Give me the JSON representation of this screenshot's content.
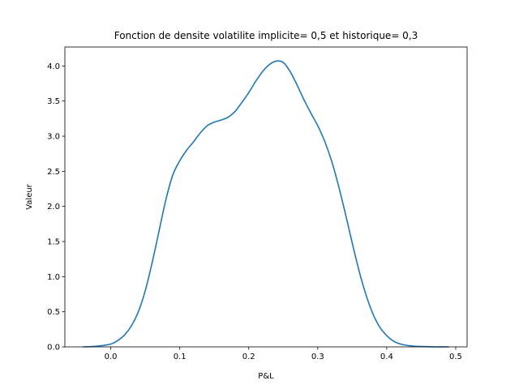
{
  "chart_data": {
    "type": "line",
    "title": "Fonction de densite volatilite implicite= 0,5 et historique= 0,3",
    "xlabel": "P&L",
    "ylabel": "Valeur",
    "xlim": [
      -0.0665,
      0.5165
    ],
    "ylim": [
      0.0,
      4.27
    ],
    "x_ticks": [
      0.0,
      0.1,
      0.2,
      0.3,
      0.4,
      0.5
    ],
    "x_tick_labels": [
      "0.0",
      "0.1",
      "0.2",
      "0.3",
      "0.4",
      "0.5"
    ],
    "y_ticks": [
      0.0,
      0.5,
      1.0,
      1.5,
      2.0,
      2.5,
      3.0,
      3.5,
      4.0
    ],
    "y_tick_labels": [
      "0.0",
      "0.5",
      "1.0",
      "1.5",
      "2.0",
      "2.5",
      "3.0",
      "3.5",
      "4.0"
    ],
    "grid": false,
    "line_color": "#1f77b4",
    "series": [
      {
        "x": [
          -0.04,
          -0.02,
          0.0,
          0.01,
          0.02,
          0.03,
          0.04,
          0.05,
          0.06,
          0.07,
          0.08,
          0.09,
          0.1,
          0.11,
          0.12,
          0.13,
          0.14,
          0.15,
          0.16,
          0.17,
          0.18,
          0.19,
          0.2,
          0.21,
          0.22,
          0.23,
          0.24,
          0.25,
          0.26,
          0.27,
          0.28,
          0.29,
          0.3,
          0.31,
          0.32,
          0.33,
          0.34,
          0.35,
          0.36,
          0.37,
          0.38,
          0.39,
          0.4,
          0.41,
          0.42,
          0.43,
          0.44,
          0.45,
          0.47,
          0.49
        ],
        "y": [
          0.0,
          0.01,
          0.04,
          0.09,
          0.17,
          0.3,
          0.5,
          0.8,
          1.2,
          1.65,
          2.1,
          2.45,
          2.65,
          2.8,
          2.92,
          3.05,
          3.15,
          3.2,
          3.23,
          3.27,
          3.35,
          3.48,
          3.62,
          3.78,
          3.92,
          4.02,
          4.07,
          4.05,
          3.92,
          3.73,
          3.52,
          3.33,
          3.15,
          2.93,
          2.65,
          2.3,
          1.9,
          1.48,
          1.08,
          0.74,
          0.47,
          0.28,
          0.16,
          0.08,
          0.04,
          0.02,
          0.01,
          0.005,
          0.0,
          0.0
        ]
      }
    ]
  }
}
